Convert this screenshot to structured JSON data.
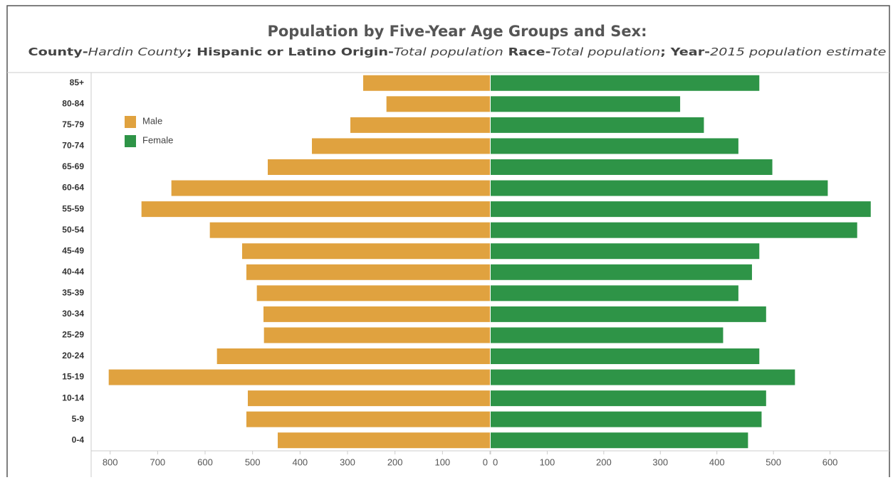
{
  "chart_data": {
    "type": "pyramid",
    "title": "Population by Five-Year Age Groups and Sex:",
    "subtitle": [
      {
        "text": "County-",
        "style": "bold"
      },
      {
        "text": "Hardin County",
        "style": "italic"
      },
      {
        "text": "; ",
        "style": "bold"
      },
      {
        "text": "Hispanic or Latino Origin-",
        "style": "bold"
      },
      {
        "text": "Total population",
        "style": "italic"
      },
      {
        "text": " Race-",
        "style": "bold"
      },
      {
        "text": "Total population",
        "style": "italic"
      },
      {
        "text": ";  Year-",
        "style": "bold"
      },
      {
        "text": "2015 population estimate",
        "style": "italic"
      }
    ],
    "categories": [
      "85+",
      "80-84",
      "75-79",
      "70-74",
      "65-69",
      "60-64",
      "55-59",
      "50-54",
      "45-49",
      "40-44",
      "35-39",
      "30-34",
      "25-29",
      "20-24",
      "15-19",
      "10-14",
      "5-9",
      "0-4"
    ],
    "series": [
      {
        "name": "Male",
        "color": "#e0a23f",
        "side": "left",
        "values": [
          267,
          218,
          294,
          375,
          468,
          671,
          734,
          590,
          522,
          513,
          491,
          477,
          476,
          575,
          803,
          510,
          513,
          447
        ],
        "xlim": [
          0,
          840
        ],
        "xticks": [
          0,
          100,
          200,
          300,
          400,
          500,
          600,
          700,
          800
        ]
      },
      {
        "name": "Female",
        "color": "#2e9447",
        "side": "right",
        "values": [
          475,
          335,
          377,
          438,
          498,
          596,
          672,
          648,
          475,
          462,
          438,
          487,
          411,
          475,
          538,
          487,
          479,
          455
        ],
        "xlim": [
          0,
          700
        ],
        "xticks": [
          0,
          100,
          200,
          300,
          400,
          500,
          600
        ]
      }
    ],
    "legend": "top-left"
  }
}
